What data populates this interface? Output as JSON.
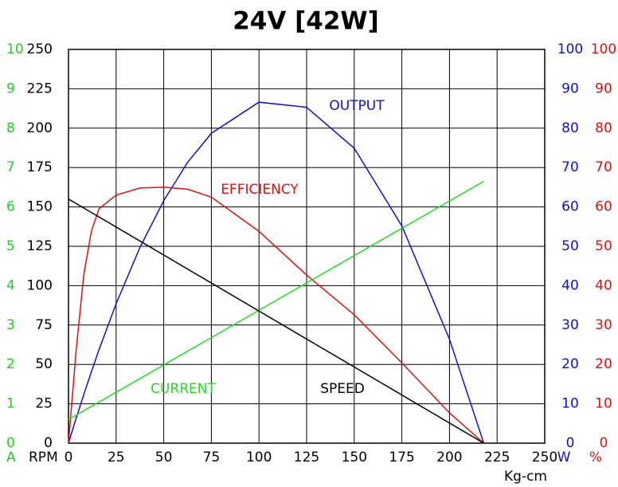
{
  "chart_data": {
    "type": "line",
    "title": "24V [42W]",
    "xlabel": "Kg-cm",
    "xlim": [
      0,
      250
    ],
    "xticks": [
      0,
      25,
      50,
      75,
      100,
      125,
      150,
      175,
      200,
      225,
      250
    ],
    "grid": true,
    "axes": [
      {
        "label": "A",
        "color": "#22cc22",
        "lim": [
          0,
          10
        ],
        "ticks": [
          0,
          1,
          2,
          3,
          4,
          5,
          6,
          7,
          8,
          9,
          10
        ]
      },
      {
        "label": "RPM",
        "color": "#000000",
        "lim": [
          0,
          250
        ],
        "ticks": [
          0,
          25,
          50,
          75,
          100,
          125,
          150,
          175,
          200,
          225,
          250
        ]
      },
      {
        "label": "W",
        "color": "#1010d0",
        "lim": [
          0,
          100
        ],
        "ticks": [
          0,
          10,
          20,
          30,
          40,
          50,
          60,
          70,
          80,
          90,
          100
        ]
      },
      {
        "label": "%",
        "color": "#e01010",
        "lim": [
          0,
          100
        ],
        "ticks": [
          0,
          10,
          20,
          30,
          40,
          50,
          60,
          70,
          80,
          90,
          100
        ]
      }
    ],
    "series": [
      {
        "name": "OUTPUT",
        "color": "#1010d0",
        "axis": 2,
        "x": [
          0,
          4,
          8,
          12,
          16,
          25,
          37.5,
          50,
          62.5,
          75,
          100,
          125,
          150,
          175,
          200,
          218
        ],
        "values": [
          0,
          6.3,
          12.3,
          18.1,
          23.7,
          35.4,
          49.7,
          61.6,
          71.3,
          78.7,
          86.6,
          85.3,
          74.9,
          55.2,
          26.4,
          0
        ]
      },
      {
        "name": "EFFICIENCY",
        "color": "#e01010",
        "axis": 3,
        "x": [
          0,
          4,
          8,
          12,
          16,
          25,
          37.5,
          50,
          62.5,
          75,
          100,
          125,
          150,
          175,
          200,
          218
        ],
        "values": [
          0,
          23.5,
          42.7,
          53.8,
          59.5,
          63,
          64.8,
          65,
          64.5,
          62.5,
          53.8,
          42.7,
          32.6,
          20.4,
          7.7,
          0
        ]
      },
      {
        "name": "CURRENT",
        "color": "#22dd22",
        "axis": 0,
        "x": [
          0,
          218
        ],
        "values": [
          0.6,
          6.65
        ]
      },
      {
        "name": "SPEED",
        "color": "#000000",
        "axis": 1,
        "x": [
          0,
          218
        ],
        "values": [
          155,
          0
        ]
      }
    ]
  }
}
